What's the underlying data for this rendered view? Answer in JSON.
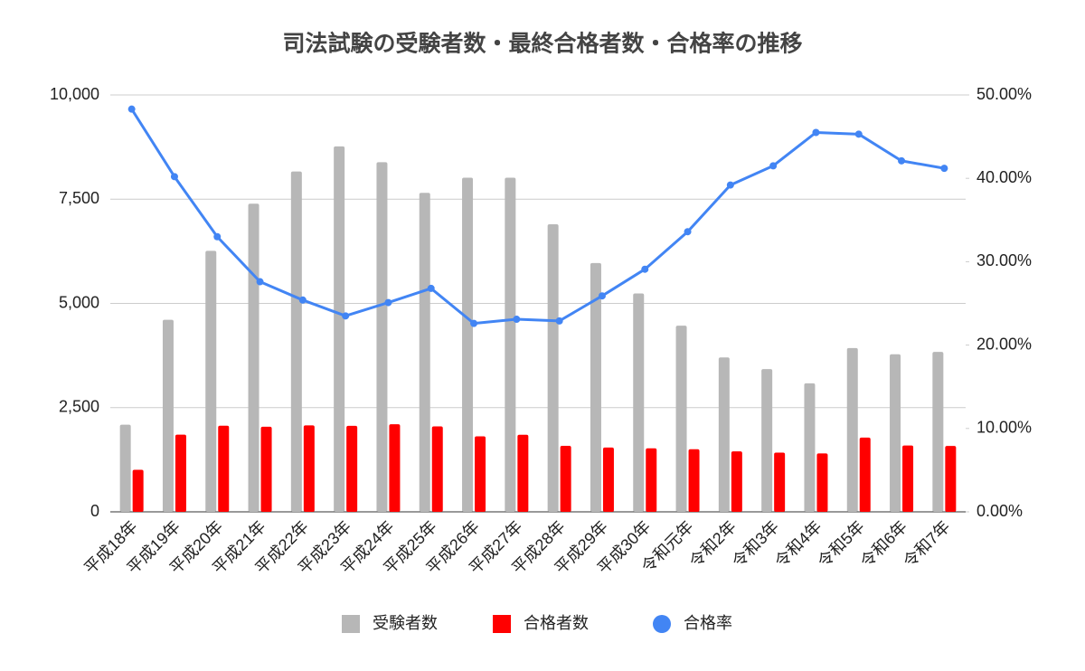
{
  "chart_data": {
    "type": "bar-line",
    "title": "司法試験の受験者数・最終合格者数・合格率の推移",
    "categories": [
      "平成18年",
      "平成19年",
      "平成20年",
      "平成21年",
      "平成22年",
      "平成23年",
      "平成24年",
      "平成25年",
      "平成26年",
      "平成27年",
      "平成28年",
      "平成29年",
      "平成30年",
      "令和元年",
      "令和2年",
      "令和3年",
      "令和4年",
      "令和5年",
      "令和6年",
      "令和7年"
    ],
    "series": [
      {
        "name": "受験者数",
        "type": "bar",
        "color": "#b7b7b7",
        "axis": "y",
        "values": [
          2091,
          4607,
          6261,
          7392,
          8163,
          8765,
          8387,
          7653,
          8015,
          8016,
          6899,
          5967,
          5238,
          4466,
          3703,
          3424,
          3082,
          3928,
          3779,
          3837
        ]
      },
      {
        "name": "合格者数",
        "type": "bar",
        "color": "#ff0000",
        "axis": "y",
        "values": [
          1009,
          1851,
          2065,
          2043,
          2074,
          2063,
          2102,
          2049,
          1810,
          1850,
          1583,
          1543,
          1525,
          1502,
          1450,
          1421,
          1403,
          1781,
          1592,
          1581
        ]
      },
      {
        "name": "合格率",
        "type": "line",
        "color": "#4285f4",
        "axis": "y2",
        "values": [
          48.3,
          40.2,
          33.0,
          27.6,
          25.4,
          23.5,
          25.1,
          26.8,
          22.6,
          23.1,
          22.9,
          25.9,
          29.1,
          33.6,
          39.2,
          41.5,
          45.5,
          45.3,
          42.1,
          41.2
        ]
      }
    ],
    "ylim": [
      0,
      10000
    ],
    "yticks": [
      0,
      {
        "value": 2500,
        "label": "2,500"
      },
      {
        "value": 5000,
        "label": "5,000"
      },
      {
        "value": 7500,
        "label": "7,500"
      },
      {
        "value": 10000,
        "label": "10,000"
      }
    ],
    "y2lim": [
      0,
      50
    ],
    "y2ticks": [
      {
        "value": 0,
        "label": "0.00%"
      },
      {
        "value": 10,
        "label": "10.00%"
      },
      {
        "value": 20,
        "label": "20.00%"
      },
      {
        "value": 30,
        "label": "30.00%"
      },
      {
        "value": 40,
        "label": "40.00%"
      },
      {
        "value": 50,
        "label": "50.00%"
      }
    ],
    "grid": true,
    "legend": "bottom"
  }
}
